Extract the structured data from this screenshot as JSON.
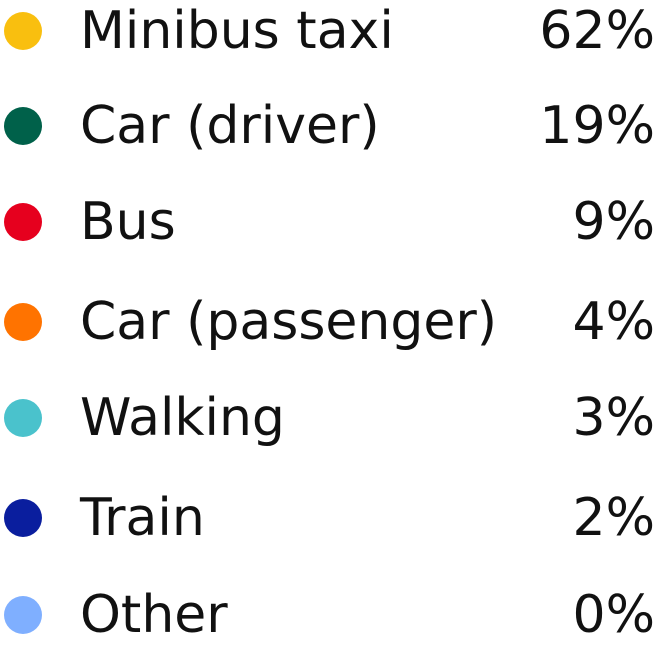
{
  "chart_data": {
    "type": "table",
    "title": "",
    "legend": [
      {
        "label": "Minibus taxi",
        "value": 62,
        "display": "62%",
        "color": "#F9BF0F"
      },
      {
        "label": "Car (driver)",
        "value": 19,
        "display": "19%",
        "color": "#00614A"
      },
      {
        "label": "Bus",
        "value": 9,
        "display": "9%",
        "color": "#E6001E"
      },
      {
        "label": "Car (passenger)",
        "value": 4,
        "display": "4%",
        "color": "#FF7300"
      },
      {
        "label": "Walking",
        "value": 3,
        "display": "3%",
        "color": "#4AC2CC"
      },
      {
        "label": "Train",
        "value": 2,
        "display": "2%",
        "color": "#0A1E9E"
      },
      {
        "label": "Other",
        "value": 0,
        "display": "0%",
        "color": "#7FAFFF"
      }
    ]
  }
}
